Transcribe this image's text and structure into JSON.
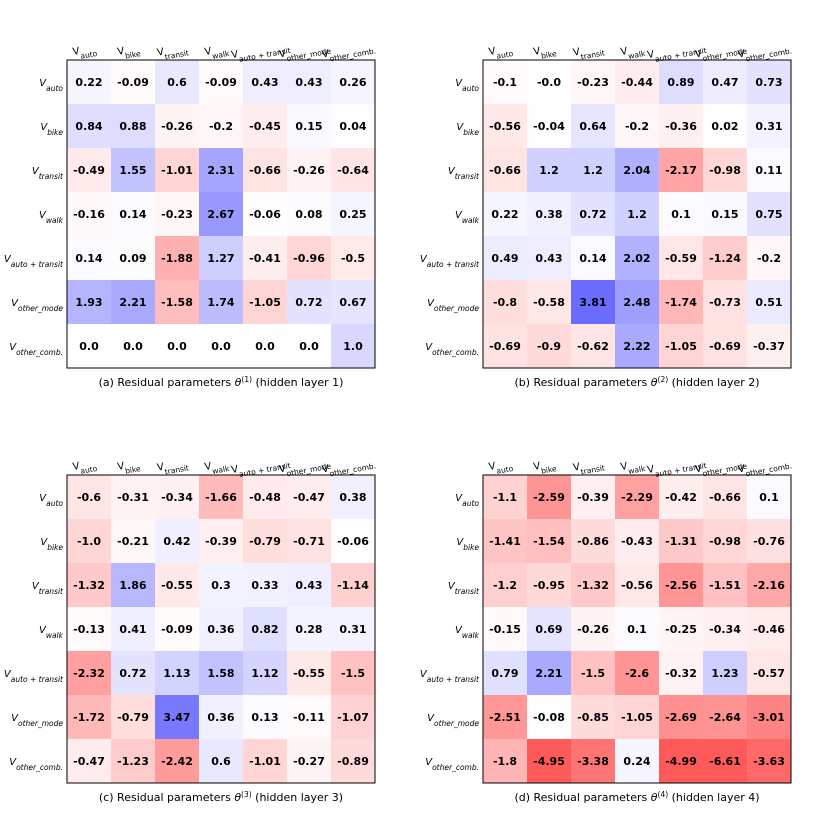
{
  "chart_data": [
    {
      "type": "heatmap",
      "caption": {
        "prefix": "(a) Residual parameters ",
        "theta": "θ",
        "sup": "(1)",
        "suffix": " (hidden layer 1)"
      },
      "columns": [
        {
          "base": "V",
          "sub": "auto"
        },
        {
          "base": "V",
          "sub": "bike"
        },
        {
          "base": "V",
          "sub": "transit"
        },
        {
          "base": "V",
          "sub": "walk"
        },
        {
          "base": "V",
          "sub": "auto + transit"
        },
        {
          "base": "V",
          "sub": "other_mode"
        },
        {
          "base": "V",
          "sub": "other_comb."
        }
      ],
      "rows": [
        {
          "base": "V",
          "sub": "auto"
        },
        {
          "base": "V",
          "sub": "bike"
        },
        {
          "base": "V",
          "sub": "transit"
        },
        {
          "base": "V",
          "sub": "walk"
        },
        {
          "base": "V",
          "sub": "auto + transit"
        },
        {
          "base": "V",
          "sub": "other_mode"
        },
        {
          "base": "V",
          "sub": "other_comb."
        }
      ],
      "values": [
        [
          "0.22",
          "-0.09",
          "0.6",
          "-0.09",
          "0.43",
          "0.43",
          "0.26"
        ],
        [
          "0.84",
          "0.88",
          "-0.26",
          "-0.2",
          "-0.45",
          "0.15",
          "0.04"
        ],
        [
          "-0.49",
          "1.55",
          "-1.01",
          "2.31",
          "-0.66",
          "-0.26",
          "-0.64"
        ],
        [
          "-0.16",
          "0.14",
          "-0.23",
          "2.67",
          "-0.06",
          "0.08",
          "0.25"
        ],
        [
          "0.14",
          "0.09",
          "-1.88",
          "1.27",
          "-0.41",
          "-0.96",
          "-0.5"
        ],
        [
          "1.93",
          "2.21",
          "-1.58",
          "1.74",
          "-1.05",
          "0.72",
          "0.67"
        ],
        [
          "0.0",
          "0.0",
          "0.0",
          "0.0",
          "0.0",
          "0.0",
          "1.0"
        ]
      ]
    },
    {
      "type": "heatmap",
      "caption": {
        "prefix": "(b) Residual parameters ",
        "theta": "θ",
        "sup": "(2)",
        "suffix": " (hidden layer 2)"
      },
      "columns": [
        {
          "base": "V",
          "sub": "auto"
        },
        {
          "base": "V",
          "sub": "bike"
        },
        {
          "base": "V",
          "sub": "transit"
        },
        {
          "base": "V",
          "sub": "walk"
        },
        {
          "base": "V",
          "sub": "auto + transit"
        },
        {
          "base": "V",
          "sub": "other_mode"
        },
        {
          "base": "V",
          "sub": "other_comb."
        }
      ],
      "rows": [
        {
          "base": "V",
          "sub": "auto"
        },
        {
          "base": "V",
          "sub": "bike"
        },
        {
          "base": "V",
          "sub": "transit"
        },
        {
          "base": "V",
          "sub": "walk"
        },
        {
          "base": "V",
          "sub": "auto + transit"
        },
        {
          "base": "V",
          "sub": "other_mode"
        },
        {
          "base": "V",
          "sub": "other_comb."
        }
      ],
      "values": [
        [
          "-0.1",
          "-0.0",
          "-0.23",
          "-0.44",
          "0.89",
          "0.47",
          "0.73"
        ],
        [
          "-0.56",
          "-0.04",
          "0.64",
          "-0.2",
          "-0.36",
          "0.02",
          "0.31"
        ],
        [
          "-0.66",
          "1.2",
          "1.2",
          "2.04",
          "-2.17",
          "-0.98",
          "0.11"
        ],
        [
          "0.22",
          "0.38",
          "0.72",
          "1.2",
          "0.1",
          "0.15",
          "0.75"
        ],
        [
          "0.49",
          "0.43",
          "0.14",
          "2.02",
          "-0.59",
          "-1.24",
          "-0.2"
        ],
        [
          "-0.8",
          "-0.58",
          "3.81",
          "2.48",
          "-1.74",
          "-0.73",
          "0.51"
        ],
        [
          "-0.69",
          "-0.9",
          "-0.62",
          "2.22",
          "-1.05",
          "-0.69",
          "-0.37"
        ]
      ]
    },
    {
      "type": "heatmap",
      "caption": {
        "prefix": "(c) Residual parameters ",
        "theta": "θ",
        "sup": "(3)",
        "suffix": " (hidden layer 3)"
      },
      "columns": [
        {
          "base": "V",
          "sub": "auto"
        },
        {
          "base": "V",
          "sub": "bike"
        },
        {
          "base": "V",
          "sub": "transit"
        },
        {
          "base": "V",
          "sub": "walk"
        },
        {
          "base": "V",
          "sub": "auto + transit"
        },
        {
          "base": "V",
          "sub": "other_mode"
        },
        {
          "base": "V",
          "sub": "other_comb."
        }
      ],
      "rows": [
        {
          "base": "V",
          "sub": "auto"
        },
        {
          "base": "V",
          "sub": "bike"
        },
        {
          "base": "V",
          "sub": "transit"
        },
        {
          "base": "V",
          "sub": "walk"
        },
        {
          "base": "V",
          "sub": "auto + transit"
        },
        {
          "base": "V",
          "sub": "other_mode"
        },
        {
          "base": "V",
          "sub": "other_comb."
        }
      ],
      "values": [
        [
          "-0.6",
          "-0.31",
          "-0.34",
          "-1.66",
          "-0.48",
          "-0.47",
          "0.38"
        ],
        [
          "-1.0",
          "-0.21",
          "0.42",
          "-0.39",
          "-0.79",
          "-0.71",
          "-0.06"
        ],
        [
          "-1.32",
          "1.86",
          "-0.55",
          "0.3",
          "0.33",
          "0.43",
          "-1.14"
        ],
        [
          "-0.13",
          "0.41",
          "-0.09",
          "0.36",
          "0.82",
          "0.28",
          "0.31"
        ],
        [
          "-2.32",
          "0.72",
          "1.13",
          "1.58",
          "1.12",
          "-0.55",
          "-1.5"
        ],
        [
          "-1.72",
          "-0.79",
          "3.47",
          "0.36",
          "0.13",
          "-0.11",
          "-1.07"
        ],
        [
          "-0.47",
          "-1.23",
          "-2.42",
          "0.6",
          "-1.01",
          "-0.27",
          "-0.89"
        ]
      ]
    },
    {
      "type": "heatmap",
      "caption": {
        "prefix": "(d) Residual parameters ",
        "theta": "θ",
        "sup": "(4)",
        "suffix": " (hidden layer 4)"
      },
      "columns": [
        {
          "base": "V",
          "sub": "auto"
        },
        {
          "base": "V",
          "sub": "bike"
        },
        {
          "base": "V",
          "sub": "transit"
        },
        {
          "base": "V",
          "sub": "walk"
        },
        {
          "base": "V",
          "sub": "auto + transit"
        },
        {
          "base": "V",
          "sub": "other_mode"
        },
        {
          "base": "V",
          "sub": "other_comb."
        }
      ],
      "rows": [
        {
          "base": "V",
          "sub": "auto"
        },
        {
          "base": "V",
          "sub": "bike"
        },
        {
          "base": "V",
          "sub": "transit"
        },
        {
          "base": "V",
          "sub": "walk"
        },
        {
          "base": "V",
          "sub": "auto + transit"
        },
        {
          "base": "V",
          "sub": "other_mode"
        },
        {
          "base": "V",
          "sub": "other_comb."
        }
      ],
      "values": [
        [
          "-1.1",
          "-2.59",
          "-0.39",
          "-2.29",
          "-0.42",
          "-0.66",
          "0.1"
        ],
        [
          "-1.41",
          "-1.54",
          "-0.86",
          "-0.43",
          "-1.31",
          "-0.98",
          "-0.76"
        ],
        [
          "-1.2",
          "-0.95",
          "-1.32",
          "-0.56",
          "-2.56",
          "-1.51",
          "-2.16"
        ],
        [
          "-0.15",
          "0.69",
          "-0.26",
          "0.1",
          "-0.25",
          "-0.34",
          "-0.46"
        ],
        [
          "0.79",
          "2.21",
          "-1.5",
          "-2.6",
          "-0.32",
          "1.23",
          "-0.57"
        ],
        [
          "-2.51",
          "-0.08",
          "-0.85",
          "-1.05",
          "-2.69",
          "-2.64",
          "-3.01"
        ],
        [
          "-1.8",
          "-4.95",
          "-3.38",
          "0.24",
          "-4.99",
          "-6.61",
          "-3.63"
        ]
      ]
    }
  ],
  "colors": {
    "positive_max": "#6464ff",
    "negative_max": "#ff5a5a",
    "neutral": "#ffffff",
    "text": "#000000",
    "frame": "#000000"
  }
}
